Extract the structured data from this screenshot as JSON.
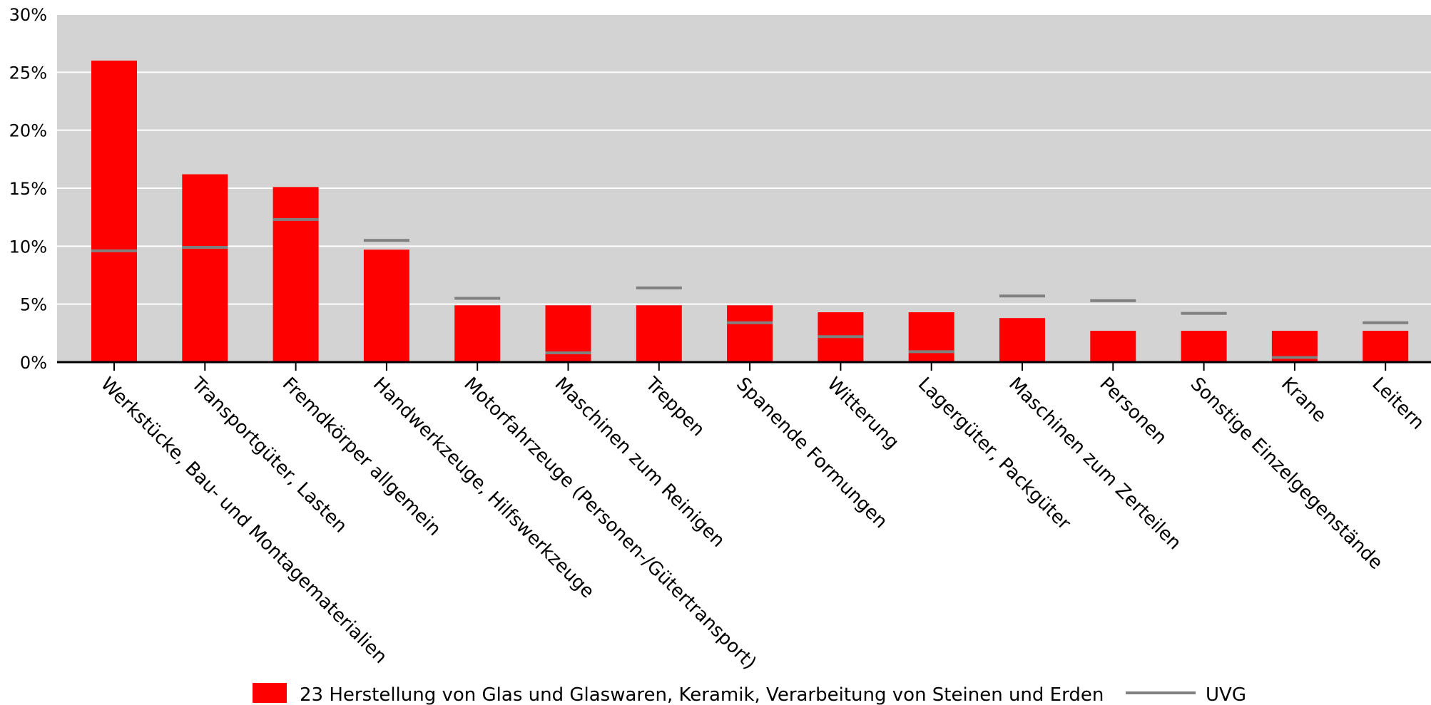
{
  "chart_data": {
    "type": "bar",
    "categories": [
      "Werkstücke, Bau- und Montagematerialien",
      "Transportgüter, Lasten",
      "Fremdkörper allgemein",
      "Handwerkzeuge, Hilfswerkzeuge",
      "Motorfahrzeuge (Personen-/Gütertransport)",
      "Maschinen zum Reinigen",
      "Treppen",
      "Spanende Formungen",
      "Witterung",
      "Lagergüter, Packgüter",
      "Maschinen zum Zerteilen",
      "Personen",
      "Sonstige Einzelgegenstände",
      "Krane",
      "Leitern"
    ],
    "series": [
      {
        "name": "23 Herstellung von Glas und Glaswaren, Keramik, Verarbeitung von Steinen und Erden",
        "kind": "bar",
        "color": "#ff0000",
        "values": [
          26.0,
          16.2,
          15.1,
          9.7,
          4.9,
          4.9,
          4.9,
          4.9,
          4.3,
          4.3,
          3.8,
          2.7,
          2.7,
          2.7,
          2.7
        ]
      },
      {
        "name": "UVG",
        "kind": "marker",
        "color": "#808080",
        "values": [
          9.6,
          9.9,
          12.3,
          10.5,
          5.5,
          0.8,
          6.4,
          3.4,
          2.2,
          0.9,
          5.7,
          5.3,
          4.2,
          0.4,
          3.4
        ]
      }
    ],
    "y_ticks": [
      "0%",
      "5%",
      "10%",
      "15%",
      "20%",
      "25%",
      "30%"
    ],
    "ylim": [
      0,
      30
    ],
    "grid": true,
    "legend_position": "bottom",
    "background_color": "#d3d3d3"
  }
}
